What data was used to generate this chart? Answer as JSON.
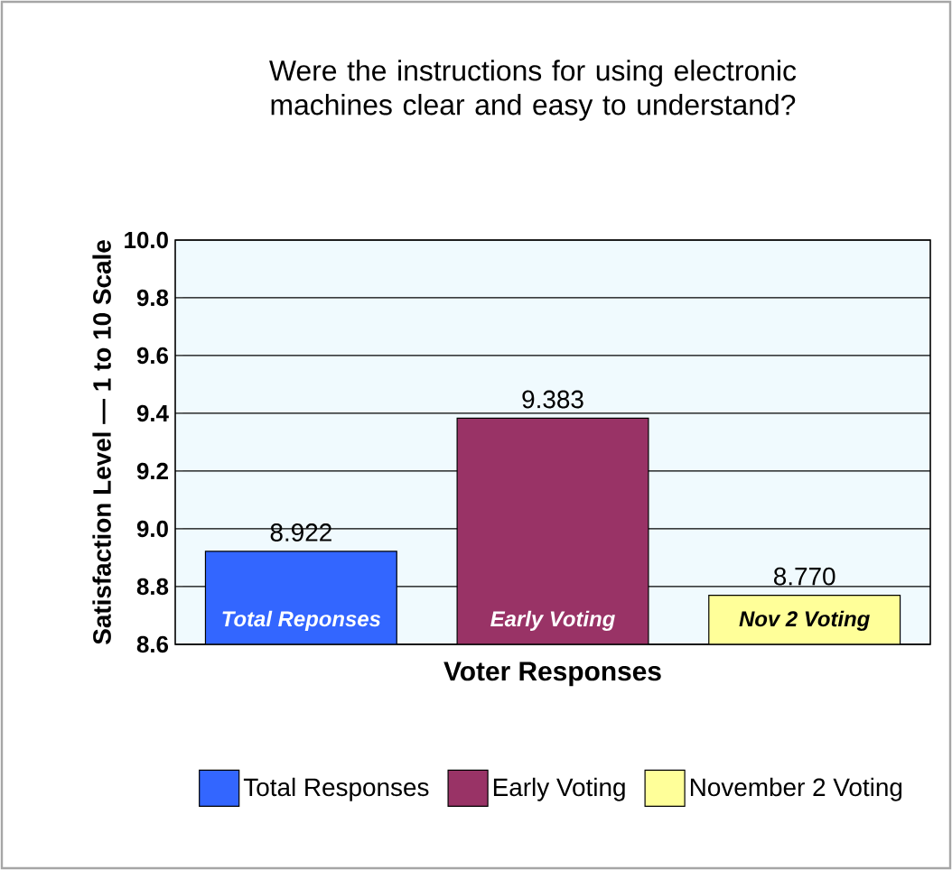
{
  "chart_data": {
    "type": "bar",
    "title": "Were the instructions for using electronic machines clear and easy to understand?",
    "xlabel": "Voter Responses",
    "ylabel": "Satisfaction Level — 1 to 10 Scale",
    "categories": [
      "Total Reponses",
      "Early Voting",
      "Nov 2 Voting"
    ],
    "series": [
      {
        "name": "Total Responses",
        "color": "#3366ff",
        "values": [
          8.922,
          null,
          null
        ],
        "value_labels": [
          "8.922",
          null,
          null
        ]
      },
      {
        "name": "Early Voting",
        "color": "#993366",
        "values": [
          null,
          9.383,
          null
        ],
        "value_labels": [
          null,
          "9.383",
          null
        ]
      },
      {
        "name": "November 2 Voting",
        "color": "#ffff99",
        "values": [
          null,
          null,
          8.77
        ],
        "value_labels": [
          null,
          null,
          "8.770"
        ]
      }
    ],
    "ylim": [
      8.6,
      10.0
    ],
    "yticks": [
      {
        "value": 8.6,
        "label": "8.6"
      },
      {
        "value": 8.8,
        "label": "8.8"
      },
      {
        "value": 9.0,
        "label": "9.0"
      },
      {
        "value": 9.2,
        "label": "9.2"
      },
      {
        "value": 9.4,
        "label": "9.4"
      },
      {
        "value": 9.6,
        "label": "9.6"
      },
      {
        "value": 9.8,
        "label": "9.8"
      },
      {
        "value": 10.0,
        "label": "10.0"
      }
    ],
    "grid": "y",
    "legend": "bottom"
  }
}
